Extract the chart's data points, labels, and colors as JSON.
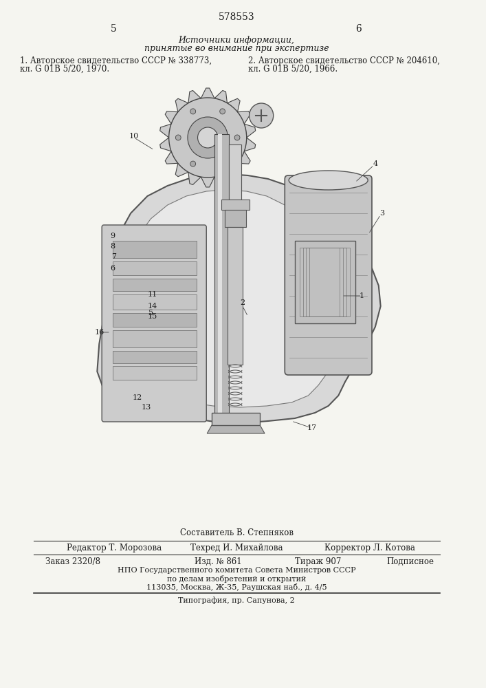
{
  "bg_color": "#f5f5f0",
  "patent_number": "578553",
  "page_left": "5",
  "page_right": "6",
  "header_line1": "Источники информации,",
  "header_line2": "принятые во внимание при экспертизе",
  "ref1_line1": "1. Авторское свидетельство СССР № 338773,",
  "ref1_line2": "кл. G 01В 5/20, 1970.",
  "ref2_line1": "2. Авторское свидетельство СССР № 204610,",
  "ref2_line2": "кл. G 01В 5/20, 1966.",
  "compiler_label": "Составитель",
  "compiler_name": "В. Степняков",
  "editor_label": "Редактор",
  "editor_name": "Т. Морозова",
  "techred_label": "Техред",
  "techred_name": "И. Михайлова",
  "corrector_label": "Корректор",
  "corrector_name": "Л. Котова",
  "order_label": "Заказ 2320/8",
  "izd_label": "Изд. № 861",
  "tirazh_label": "Тираж 907",
  "podpisnoe_label": "Подписное",
  "npo_line1": "НПО Государственного комитета Совета Министров СССР",
  "npo_line2": "по делам изобретений и открытий",
  "npo_line3": "113035, Москва, Ж-35, Раушская наб., д. 4/5",
  "typography": "Типография, пр. Сапунова, 2",
  "text_color": "#1a1a1a",
  "line_color": "#333333"
}
